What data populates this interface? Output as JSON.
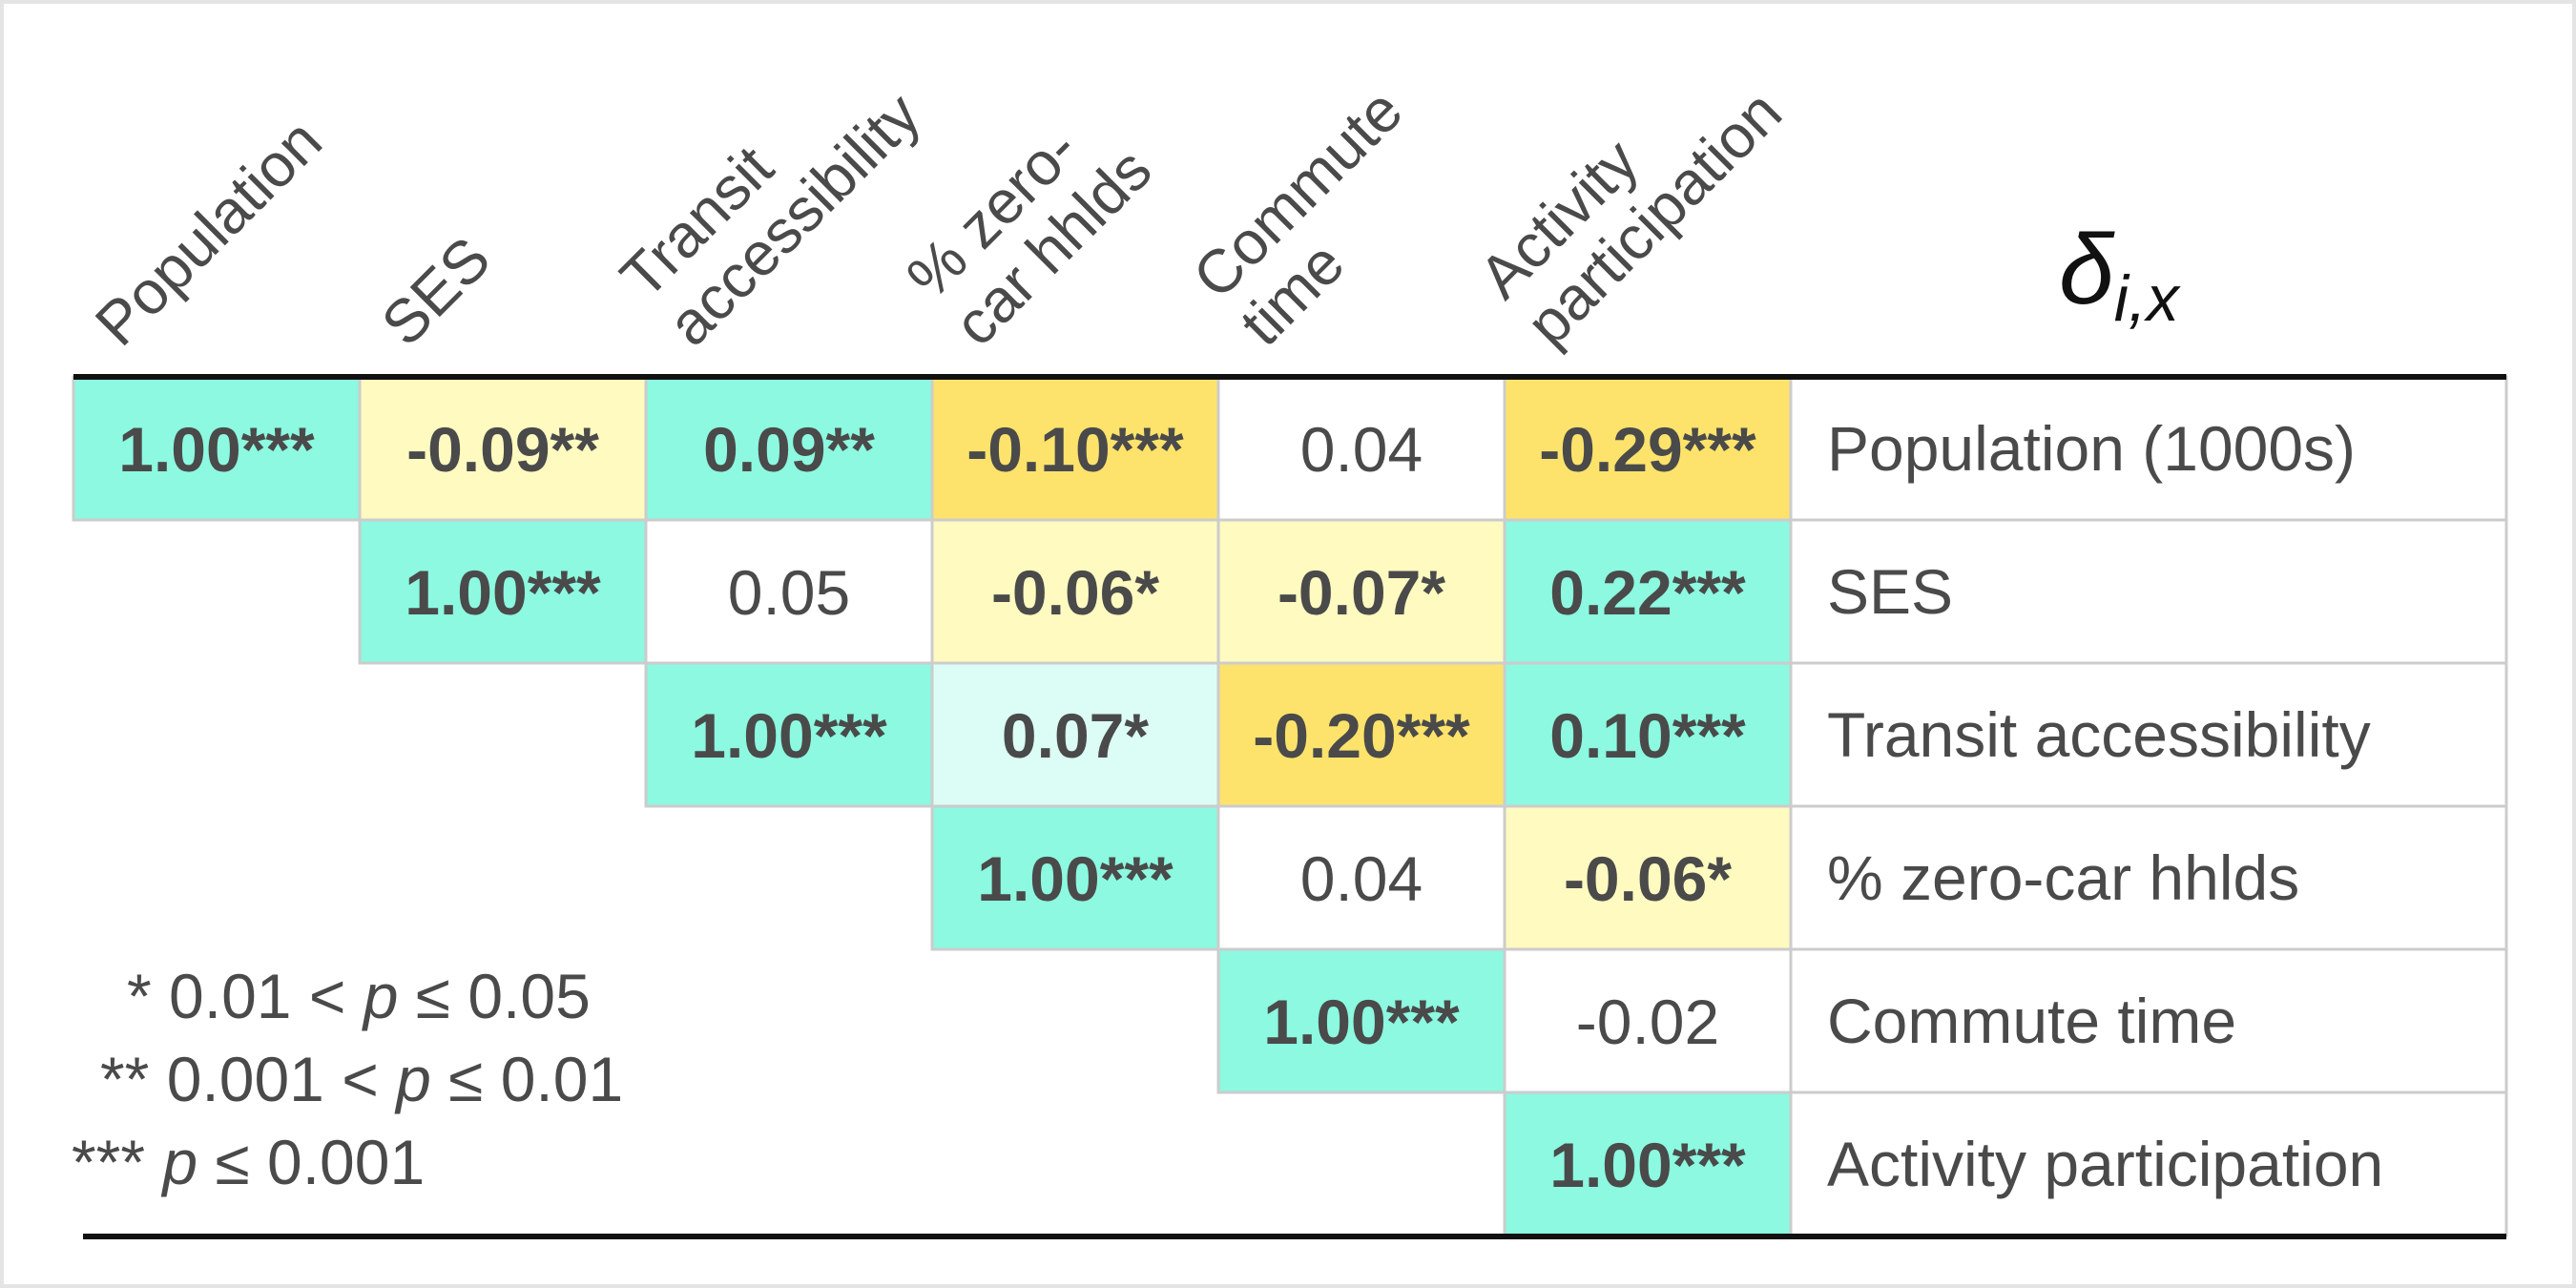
{
  "chart_data": {
    "type": "heatmap",
    "columns": [
      [
        "Population"
      ],
      [
        "SES"
      ],
      [
        "Transit",
        "accessibility"
      ],
      [
        "% zero-",
        "car hhlds"
      ],
      [
        "Commute",
        "time"
      ],
      [
        "Activity",
        "participation"
      ]
    ],
    "delta_label": {
      "base": "δ",
      "subscript": "i,x"
    },
    "rows": [
      "Population (1000s)",
      "SES",
      "Transit accessibility",
      "% zero-car hhlds",
      "Commute time",
      "Activity participation"
    ],
    "values": [
      [
        1.0,
        -0.09,
        0.09,
        -0.1,
        0.04,
        -0.29
      ],
      [
        null,
        1.0,
        0.05,
        -0.06,
        -0.07,
        0.22
      ],
      [
        null,
        null,
        1.0,
        0.07,
        -0.2,
        0.1
      ],
      [
        null,
        null,
        null,
        1.0,
        0.04,
        -0.06
      ],
      [
        null,
        null,
        null,
        null,
        1.0,
        -0.02
      ],
      [
        null,
        null,
        null,
        null,
        null,
        1.0
      ]
    ],
    "cell_labels": [
      [
        "1.00***",
        "-0.09**",
        "0.09**",
        "-0.10***",
        "0.04",
        "-0.29***"
      ],
      [
        null,
        "1.00***",
        "0.05",
        "-0.06*",
        "-0.07*",
        "0.22***"
      ],
      [
        null,
        null,
        "1.00***",
        "0.07*",
        "-0.20***",
        "0.10***"
      ],
      [
        null,
        null,
        null,
        "1.00***",
        "0.04",
        "-0.06*"
      ],
      [
        null,
        null,
        null,
        null,
        "1.00***",
        "-0.02"
      ],
      [
        null,
        null,
        null,
        null,
        null,
        "1.00***"
      ]
    ],
    "significant": [
      [
        true,
        true,
        true,
        true,
        false,
        true
      ],
      [
        null,
        true,
        false,
        true,
        true,
        true
      ],
      [
        null,
        null,
        true,
        true,
        true,
        true
      ],
      [
        null,
        null,
        null,
        true,
        false,
        true
      ],
      [
        null,
        null,
        null,
        null,
        true,
        false
      ],
      [
        null,
        null,
        null,
        null,
        null,
        true
      ]
    ],
    "legend": [
      {
        "stars": "*",
        "pre": " 0.01 < ",
        "p": "p",
        "post": " ≤ 0.05"
      },
      {
        "stars": "**",
        "pre": " 0.001 < ",
        "p": "p",
        "post": " ≤ 0.01"
      },
      {
        "stars": "***",
        "pre": " ",
        "p": "p",
        "post": " ≤ 0.001"
      }
    ],
    "colors": {
      "positive_strong": "#8cf9e0",
      "positive_light": "#dcfdf5",
      "negative_strong": "#fde36b",
      "negative_light": "#fefac0",
      "neutral": "#ffffff",
      "text": "#4a4a4a",
      "grid": "#cccccc",
      "rule": "#111111"
    }
  }
}
